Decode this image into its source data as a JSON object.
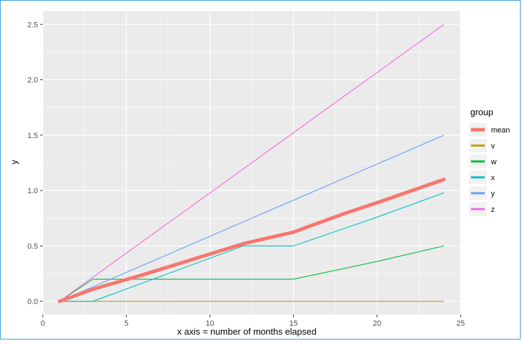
{
  "chart_data": {
    "type": "line",
    "title": "",
    "xlabel": "x axis = number of months elapsed",
    "ylabel": "y",
    "xlim": [
      0,
      25
    ],
    "ylim": [
      -0.12,
      2.62
    ],
    "x_ticks": [
      0,
      5,
      10,
      15,
      20,
      25
    ],
    "y_ticks": [
      0.0,
      0.5,
      1.0,
      1.5,
      2.0,
      2.5
    ],
    "y_tick_labels": [
      "0.0",
      "0.5",
      "1.0",
      "1.5",
      "2.0",
      "2.5"
    ],
    "grid": true,
    "panel_background": "#ebebeb",
    "legend": {
      "title": "group",
      "position": "right"
    },
    "series": [
      {
        "name": "mean",
        "color": "#f8766d",
        "linewidth": "thick",
        "x": [
          1,
          3,
          6,
          12,
          15,
          18,
          20,
          24
        ],
        "y": [
          0.0,
          0.11,
          0.24,
          0.52,
          0.625,
          0.79,
          0.89,
          1.1
        ]
      },
      {
        "name": "v",
        "color": "#b79f00",
        "x": [
          1,
          24
        ],
        "y": [
          0.0,
          0.0
        ]
      },
      {
        "name": "w",
        "color": "#00ba38",
        "x": [
          1,
          3,
          15,
          20,
          24
        ],
        "y": [
          0.0,
          0.2,
          0.2,
          0.36,
          0.5
        ]
      },
      {
        "name": "x",
        "color": "#00bfc4",
        "x": [
          1,
          3,
          12,
          15,
          20,
          24
        ],
        "y": [
          0.0,
          0.0,
          0.5,
          0.5,
          0.76,
          0.98
        ]
      },
      {
        "name": "y",
        "color": "#619cff",
        "x": [
          1,
          24
        ],
        "y": [
          0.0,
          1.5
        ]
      },
      {
        "name": "z",
        "color": "#f564e3",
        "x": [
          1,
          24
        ],
        "y": [
          0.0,
          2.5
        ]
      }
    ]
  }
}
